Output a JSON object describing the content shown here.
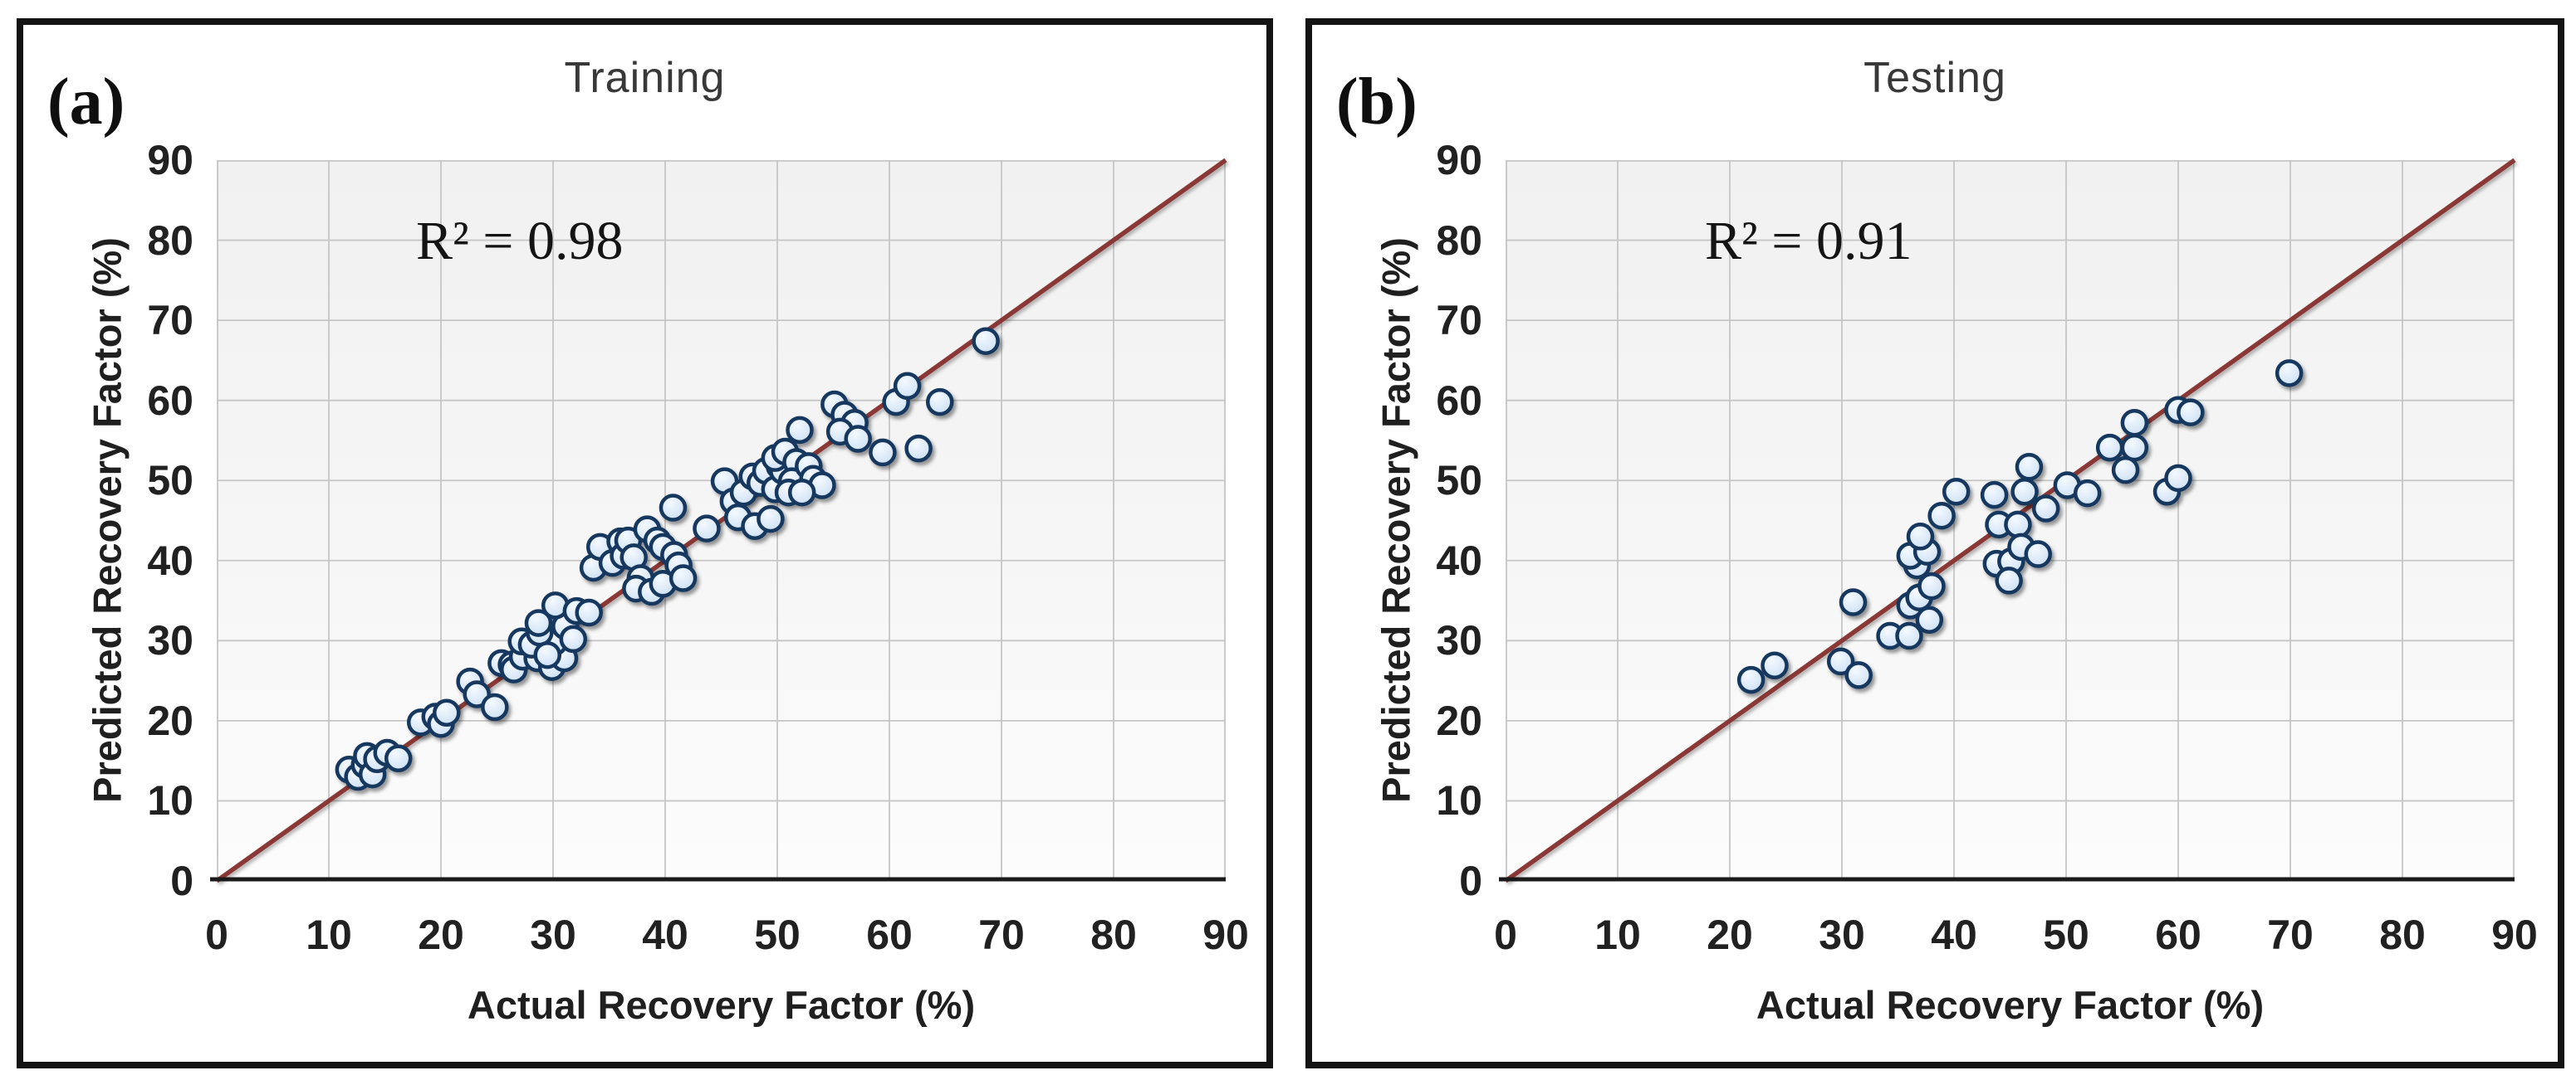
{
  "style": {
    "marker_stroke": "#17375E",
    "marker_fill": "#DCEAF8",
    "marker_fill_light": "#F4F9FE",
    "marker_fill_dark": "#C6DCF2",
    "line_color": "#8A3835",
    "grid_color": "#C6C6C6",
    "axis_color": "#1A1A1A",
    "title_color": "#383838",
    "text_color": "#1F1F1F"
  },
  "panels": [
    {
      "tag": "(a)",
      "title": "Training",
      "r2_text": "R² = 0.98"
    },
    {
      "tag": "(b)",
      "title": "Testing",
      "r2_text": "R² = 0.91"
    }
  ],
  "axes": {
    "xlabel": "Actual Recovery Factor (%)",
    "ylabel": "Predicted Recovery Factor (%)"
  },
  "chart_data": [
    {
      "type": "scatter",
      "title": "Training",
      "annotation": "R² = 0.98",
      "r_squared": 0.98,
      "xlabel": "Actual Recovery Factor (%)",
      "ylabel": "Predicted Recovery Factor (%)",
      "xlim": [
        0,
        90
      ],
      "ylim": [
        0,
        90
      ],
      "xticks": [
        0,
        10,
        20,
        30,
        40,
        50,
        60,
        70,
        80,
        90
      ],
      "yticks": [
        0,
        10,
        20,
        30,
        40,
        50,
        60,
        70,
        80,
        90
      ],
      "grid": true,
      "legend": false,
      "identity_line": {
        "from": [
          0,
          0
        ],
        "to": [
          90,
          90
        ]
      },
      "points": [
        [
          11.8,
          13.9
        ],
        [
          12.6,
          13.0
        ],
        [
          13.2,
          14.5
        ],
        [
          13.4,
          15.6
        ],
        [
          13.9,
          13.3
        ],
        [
          14.3,
          15.2
        ],
        [
          15.2,
          16.0
        ],
        [
          16.2,
          15.3
        ],
        [
          18.2,
          19.8
        ],
        [
          19.5,
          20.5
        ],
        [
          20.0,
          19.6
        ],
        [
          20.5,
          21.0
        ],
        [
          22.6,
          24.9
        ],
        [
          23.2,
          23.3
        ],
        [
          24.8,
          21.7
        ],
        [
          25.4,
          27.2
        ],
        [
          26.3,
          27.0
        ],
        [
          26.5,
          26.4
        ],
        [
          27.3,
          28.0
        ],
        [
          28.6,
          27.8
        ],
        [
          29.9,
          26.7
        ],
        [
          31.0,
          27.8
        ],
        [
          27.2,
          29.9
        ],
        [
          28.1,
          29.5
        ],
        [
          30.1,
          29.8
        ],
        [
          28.8,
          31.0
        ],
        [
          29.5,
          28.2
        ],
        [
          28.7,
          32.2
        ],
        [
          31.1,
          31.8
        ],
        [
          31.8,
          30.2
        ],
        [
          30.2,
          34.4
        ],
        [
          32.1,
          33.7
        ],
        [
          33.2,
          33.5
        ],
        [
          33.6,
          39.1
        ],
        [
          34.2,
          41.7
        ],
        [
          35.3,
          39.7
        ],
        [
          36.0,
          42.4
        ],
        [
          36.3,
          40.6
        ],
        [
          36.7,
          42.5
        ],
        [
          37.2,
          40.4
        ],
        [
          38.4,
          43.9
        ],
        [
          39.3,
          42.5
        ],
        [
          39.8,
          41.7
        ],
        [
          40.8,
          40.7
        ],
        [
          41.2,
          39.4
        ],
        [
          37.8,
          37.8
        ],
        [
          37.4,
          36.5
        ],
        [
          38.8,
          36.1
        ],
        [
          39.8,
          37.1
        ],
        [
          41.6,
          37.8
        ],
        [
          40.7,
          46.6
        ],
        [
          43.7,
          44.0
        ],
        [
          45.3,
          49.9
        ],
        [
          46.1,
          47.4
        ],
        [
          47.0,
          48.5
        ],
        [
          47.8,
          50.5
        ],
        [
          48.5,
          49.7
        ],
        [
          49.0,
          51.2
        ],
        [
          49.8,
          48.9
        ],
        [
          50.2,
          51.8
        ],
        [
          50.5,
          51.2
        ],
        [
          49.8,
          52.8
        ],
        [
          50.7,
          53.6
        ],
        [
          51.7,
          52.3
        ],
        [
          51.3,
          49.9
        ],
        [
          52.8,
          51.8
        ],
        [
          53.2,
          50.2
        ],
        [
          54.0,
          49.4
        ],
        [
          46.5,
          45.4
        ],
        [
          48.0,
          44.3
        ],
        [
          49.4,
          45.2
        ],
        [
          51.0,
          48.5
        ],
        [
          52.2,
          48.5
        ],
        [
          52.0,
          56.3
        ],
        [
          55.1,
          59.5
        ],
        [
          56.0,
          58.2
        ],
        [
          56.9,
          57.2
        ],
        [
          55.6,
          56.1
        ],
        [
          57.2,
          55.2
        ],
        [
          59.4,
          53.5
        ],
        [
          62.6,
          54.0
        ],
        [
          60.6,
          59.8
        ],
        [
          61.6,
          61.8
        ],
        [
          64.5,
          59.8
        ],
        [
          68.6,
          67.4
        ]
      ]
    },
    {
      "type": "scatter",
      "title": "Testing",
      "annotation": "R² = 0.91",
      "r_squared": 0.91,
      "xlabel": "Actual Recovery Factor (%)",
      "ylabel": "Predicted Recovery Factor (%)",
      "xlim": [
        0,
        90
      ],
      "ylim": [
        0,
        90
      ],
      "xticks": [
        0,
        10,
        20,
        30,
        40,
        50,
        60,
        70,
        80,
        90
      ],
      "yticks": [
        0,
        10,
        20,
        30,
        40,
        50,
        60,
        70,
        80,
        90
      ],
      "grid": true,
      "legend": false,
      "identity_line": {
        "from": [
          0,
          0
        ],
        "to": [
          90,
          90
        ]
      },
      "points": [
        [
          21.9,
          25.1
        ],
        [
          24.0,
          26.9
        ],
        [
          29.9,
          27.4
        ],
        [
          31.5,
          25.7
        ],
        [
          31.0,
          34.8
        ],
        [
          34.3,
          30.6
        ],
        [
          36.0,
          30.6
        ],
        [
          37.8,
          32.6
        ],
        [
          36.1,
          34.4
        ],
        [
          36.9,
          35.4
        ],
        [
          38.0,
          36.8
        ],
        [
          36.7,
          39.4
        ],
        [
          36.1,
          40.6
        ],
        [
          37.6,
          41.1
        ],
        [
          37.0,
          43.0
        ],
        [
          38.9,
          45.6
        ],
        [
          40.2,
          48.6
        ],
        [
          43.6,
          48.2
        ],
        [
          43.8,
          39.6
        ],
        [
          45.1,
          39.9
        ],
        [
          44.9,
          37.5
        ],
        [
          44.0,
          44.5
        ],
        [
          45.7,
          44.5
        ],
        [
          46.0,
          41.7
        ],
        [
          47.5,
          40.8
        ],
        [
          46.3,
          48.6
        ],
        [
          46.7,
          51.7
        ],
        [
          48.2,
          46.5
        ],
        [
          50.1,
          49.4
        ],
        [
          51.9,
          48.4
        ],
        [
          53.9,
          54.1
        ],
        [
          56.1,
          54.1
        ],
        [
          55.3,
          51.3
        ],
        [
          56.1,
          57.2
        ],
        [
          59.0,
          48.6
        ],
        [
          60.0,
          50.3
        ],
        [
          60.0,
          58.8
        ],
        [
          61.1,
          58.5
        ],
        [
          69.9,
          63.4
        ]
      ]
    }
  ]
}
